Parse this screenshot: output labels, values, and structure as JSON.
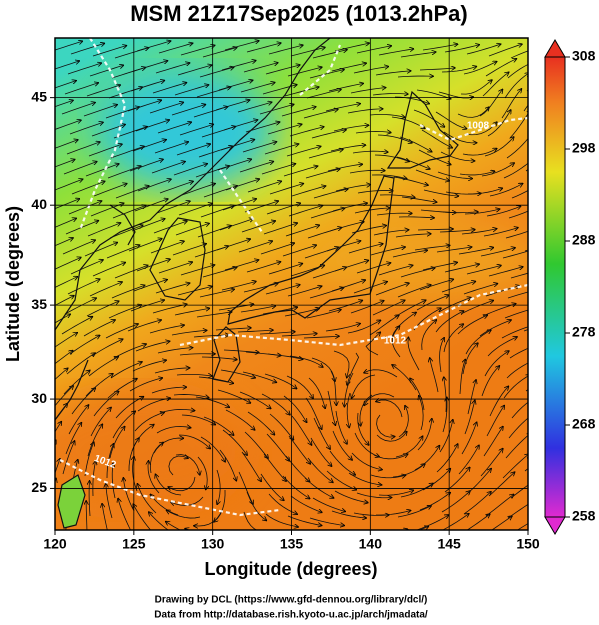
{
  "title": "MSM 21Z17Sep2025 (1013.2hPa)",
  "x_axis": {
    "label": "Longitude (degrees)",
    "lim": [
      120,
      150
    ],
    "ticks": [
      120,
      125,
      130,
      135,
      140,
      145,
      150
    ]
  },
  "y_axis": {
    "label": "Latitude  (degrees)",
    "lim": [
      22.6,
      47.6
    ],
    "ticks": [
      25,
      30,
      35,
      40,
      45
    ]
  },
  "colorbar": {
    "lim": [
      258,
      308
    ],
    "ticks": [
      258,
      268,
      278,
      288,
      298,
      308
    ]
  },
  "contour_labels": [
    "1008",
    "1012",
    "1012"
  ],
  "credits": [
    "Drawing by DCL (https://www.gfd-dennou.org/library/dcl/)",
    "Data from http://database.rish.kyoto-u.ac.jp/arch/jmadata/"
  ]
}
